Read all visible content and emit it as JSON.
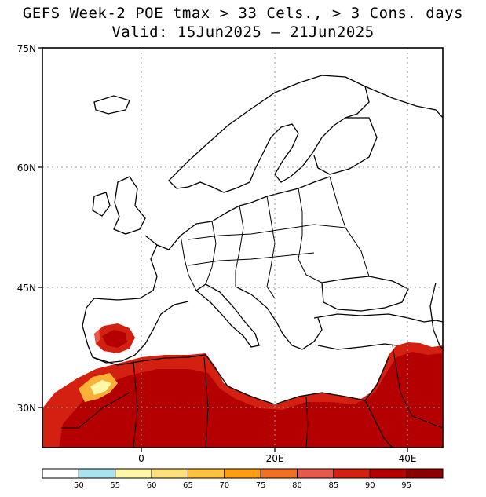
{
  "title": "GEFS Week-2 POE tmax > 33 Cels., > 3 Cons. days",
  "subtitle": "Valid: 15Jun2025 – 21Jun2025",
  "lat_labels": [
    "75N",
    "60N",
    "45N",
    "30N"
  ],
  "lon_labels": [
    "0",
    "20E",
    "40E"
  ],
  "colorbar": {
    "thresholds": [
      "50",
      "55",
      "60",
      "65",
      "70",
      "75",
      "80",
      "85",
      "90",
      "95"
    ],
    "colors": [
      "#ffffff",
      "#a8e4f0",
      "#fff6a8",
      "#ffe07a",
      "#ffc23c",
      "#ff9c10",
      "#f47020",
      "#e8584a",
      "#d42010",
      "#b40000",
      "#8c0000"
    ]
  },
  "map": {
    "ocean_color": "#ffffff",
    "land_outline_color": "#000000",
    "gridline_style": "dotted",
    "shaded_regions": [
      "North Africa",
      "Middle East",
      "Iberian Peninsula interior"
    ]
  }
}
